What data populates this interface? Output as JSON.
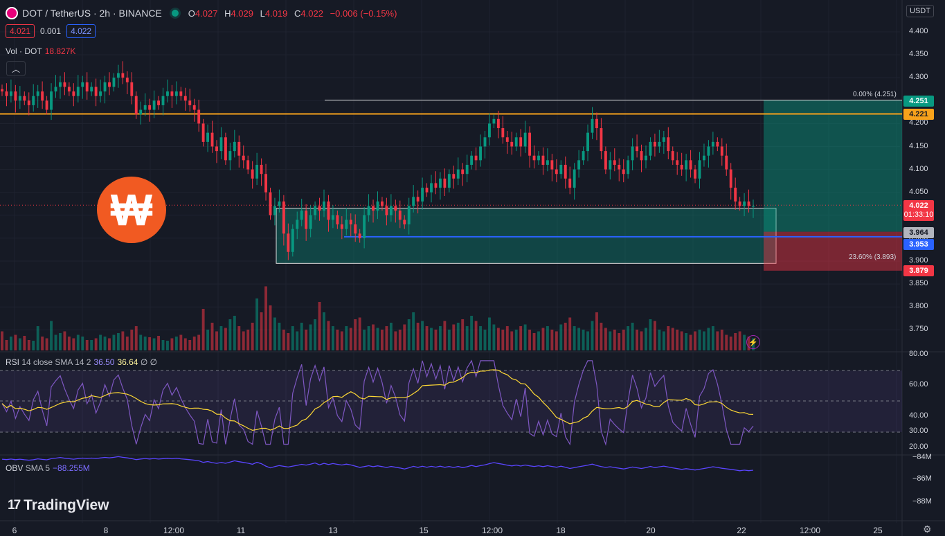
{
  "header": {
    "symbol": "DOT / TetherUS · 2h · BINANCE",
    "ohlc": {
      "o_label": "O",
      "o": "4.027",
      "h_label": "H",
      "h": "4.029",
      "l_label": "L",
      "l": "4.019",
      "c_label": "C",
      "c": "4.022",
      "change": "−0.006 (−0.15%)"
    },
    "bid": "4.021",
    "spread": "0.001",
    "ask": "4.022"
  },
  "volume_legend": {
    "label": "Vol · DOT",
    "value": "18.827K"
  },
  "collapse_icon": "chevron-up-icon",
  "currency": "USDT",
  "price_axis": [
    "4.400",
    "4.350",
    "4.300",
    "4.250",
    "4.200",
    "4.150",
    "4.100",
    "4.050",
    "4.000",
    "3.950",
    "3.900",
    "3.850",
    "3.800",
    "3.750"
  ],
  "price_tags": {
    "tp": "4.251",
    "resistance": "4.221",
    "last": "4.022",
    "countdown": "01:33:10",
    "entry": "3.964",
    "support": "3.953",
    "stop": "3.879"
  },
  "fib_labels": {
    "top": "0.00% (4.251)",
    "mid": "23.60% (3.893)"
  },
  "rsi_legend": {
    "label": "RSI",
    "params": "14 close SMA 14 2",
    "value": "36.50",
    "sma": "36.64",
    "n1": "∅",
    "n2": "∅"
  },
  "rsi_axis": [
    "80.00",
    "60.00",
    "40.00",
    "30.00",
    "20.00"
  ],
  "obv_legend": {
    "label": "OBV",
    "params": "SMA 5",
    "value": "−88.255M"
  },
  "obv_axis": [
    "−84M",
    "−86M",
    "−88M"
  ],
  "time_axis": [
    "6",
    "8",
    "12:00",
    "11",
    "13",
    "15",
    "12:00",
    "18",
    "20",
    "22",
    "12:00",
    "25"
  ],
  "branding": {
    "tradingview": "TradingView"
  },
  "colors": {
    "up": "#089981",
    "down": "#f23645",
    "resistance": "#f7a21b",
    "support": "#2962ff",
    "rsi": "#7e57c2",
    "rsi_sma": "#fdd835",
    "obv": "#5a45ff"
  },
  "chart_data": {
    "type": "candlestick",
    "series_note": "DOT/USDT 2h",
    "ylim": [
      3.7,
      4.42
    ],
    "levels": {
      "resistance": 4.221,
      "support": 3.953,
      "take_profit": 4.251,
      "entry": 3.964,
      "stop": 3.879,
      "last": 4.022
    },
    "closes": [
      4.27,
      4.26,
      4.27,
      4.25,
      4.26,
      4.25,
      4.24,
      4.26,
      4.27,
      4.25,
      4.23,
      4.27,
      4.28,
      4.29,
      4.28,
      4.27,
      4.26,
      4.28,
      4.29,
      4.27,
      4.28,
      4.26,
      4.27,
      4.29,
      4.28,
      4.3,
      4.31,
      4.3,
      4.29,
      4.26,
      4.22,
      4.23,
      4.24,
      4.23,
      4.25,
      4.24,
      4.26,
      4.27,
      4.26,
      4.27,
      4.26,
      4.25,
      4.24,
      4.23,
      4.2,
      4.16,
      4.18,
      4.15,
      4.14,
      4.17,
      4.12,
      4.14,
      4.16,
      4.13,
      4.12,
      4.1,
      4.08,
      4.11,
      4.09,
      4.05,
      4.0,
      4.02,
      4.03,
      3.96,
      3.92,
      3.97,
      3.99,
      4.01,
      3.97,
      4.0,
      4.02,
      4.01,
      4.03,
      3.99,
      4.0,
      3.98,
      3.97,
      3.99,
      3.98,
      3.96,
      3.95,
      4.0,
      4.02,
      4.01,
      4.03,
      4.02,
      4.0,
      4.02,
      4.01,
      3.99,
      3.98,
      4.02,
      4.04,
      4.03,
      4.06,
      4.05,
      4.07,
      4.06,
      4.08,
      4.06,
      4.09,
      4.08,
      4.1,
      4.09,
      4.11,
      4.13,
      4.12,
      4.15,
      4.17,
      4.2,
      4.21,
      4.19,
      4.17,
      4.16,
      4.15,
      4.17,
      4.15,
      4.18,
      4.13,
      4.12,
      4.13,
      4.11,
      4.12,
      4.1,
      4.09,
      4.11,
      4.08,
      4.06,
      4.1,
      4.12,
      4.14,
      4.18,
      4.21,
      4.19,
      4.14,
      4.1,
      4.12,
      4.11,
      4.1,
      4.09,
      4.12,
      4.15,
      4.14,
      4.12,
      4.13,
      4.16,
      4.15,
      4.16,
      4.17,
      4.14,
      4.12,
      4.11,
      4.1,
      4.12,
      4.1,
      4.08,
      4.12,
      4.13,
      4.15,
      4.16,
      4.15,
      4.13,
      4.1,
      4.06,
      4.03,
      4.02,
      4.03,
      4.02,
      4.02
    ],
    "volumes": [
      55,
      30,
      40,
      45,
      35,
      42,
      30,
      28,
      70,
      40,
      35,
      85,
      45,
      50,
      55,
      40,
      35,
      45,
      40,
      30,
      30,
      35,
      45,
      40,
      35,
      45,
      50,
      55,
      40,
      60,
      70,
      45,
      40,
      38,
      35,
      42,
      30,
      28,
      35,
      40,
      45,
      35,
      30,
      40,
      45,
      120,
      60,
      80,
      55,
      70,
      65,
      90,
      100,
      70,
      55,
      60,
      80,
      150,
      110,
      185,
      130,
      95,
      80,
      60,
      50,
      70,
      55,
      80,
      60,
      75,
      90,
      140,
      110,
      85,
      70,
      60,
      55,
      70,
      65,
      90,
      95,
      60,
      70,
      75,
      65,
      60,
      70,
      80,
      55,
      60,
      75,
      90,
      110,
      80,
      85,
      70,
      65,
      60,
      70,
      85,
      60,
      75,
      80,
      90,
      70,
      100,
      85,
      70,
      60,
      95,
      75,
      65,
      60,
      70,
      55,
      60,
      70,
      75,
      60,
      50,
      55,
      65,
      70,
      60,
      55,
      75,
      80,
      95,
      70,
      65,
      60,
      55,
      85,
      110,
      80,
      65,
      55,
      60,
      50,
      60,
      70,
      80,
      60,
      55,
      65,
      90,
      85,
      60,
      55,
      70,
      65,
      60,
      55,
      50,
      45,
      55,
      60,
      55,
      65,
      70,
      55,
      60,
      45,
      40,
      50,
      55,
      45,
      40,
      35
    ]
  }
}
